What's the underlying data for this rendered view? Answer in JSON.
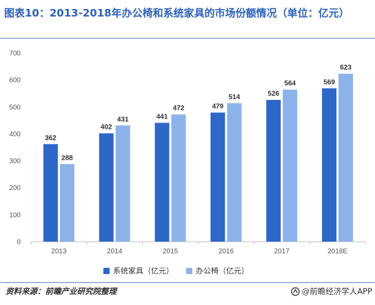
{
  "title": "图表10：2013-2018年办公椅和系统家具的市场份额情况（单位：亿元）",
  "source": "资料来源：前瞻产业研究院整理",
  "brand": "@前瞻经济学人APP",
  "colors": {
    "series1": "#2d67c8",
    "series2": "#8cb2ea",
    "title": "#2f63b8",
    "rule": "#5a86c8"
  },
  "chart_data": {
    "type": "bar",
    "categories": [
      "2013",
      "2014",
      "2015",
      "2016",
      "2017",
      "2018E"
    ],
    "series": [
      {
        "name": "系统家具（亿元）",
        "values": [
          362,
          402,
          441,
          479,
          526,
          569
        ]
      },
      {
        "name": "办公椅（亿元）",
        "values": [
          288,
          431,
          472,
          514,
          564,
          623
        ]
      }
    ],
    "ylim": [
      0,
      700
    ],
    "yticks": [
      0,
      100,
      200,
      300,
      400,
      500,
      600,
      700
    ],
    "grid": false,
    "legend_position": "bottom"
  }
}
